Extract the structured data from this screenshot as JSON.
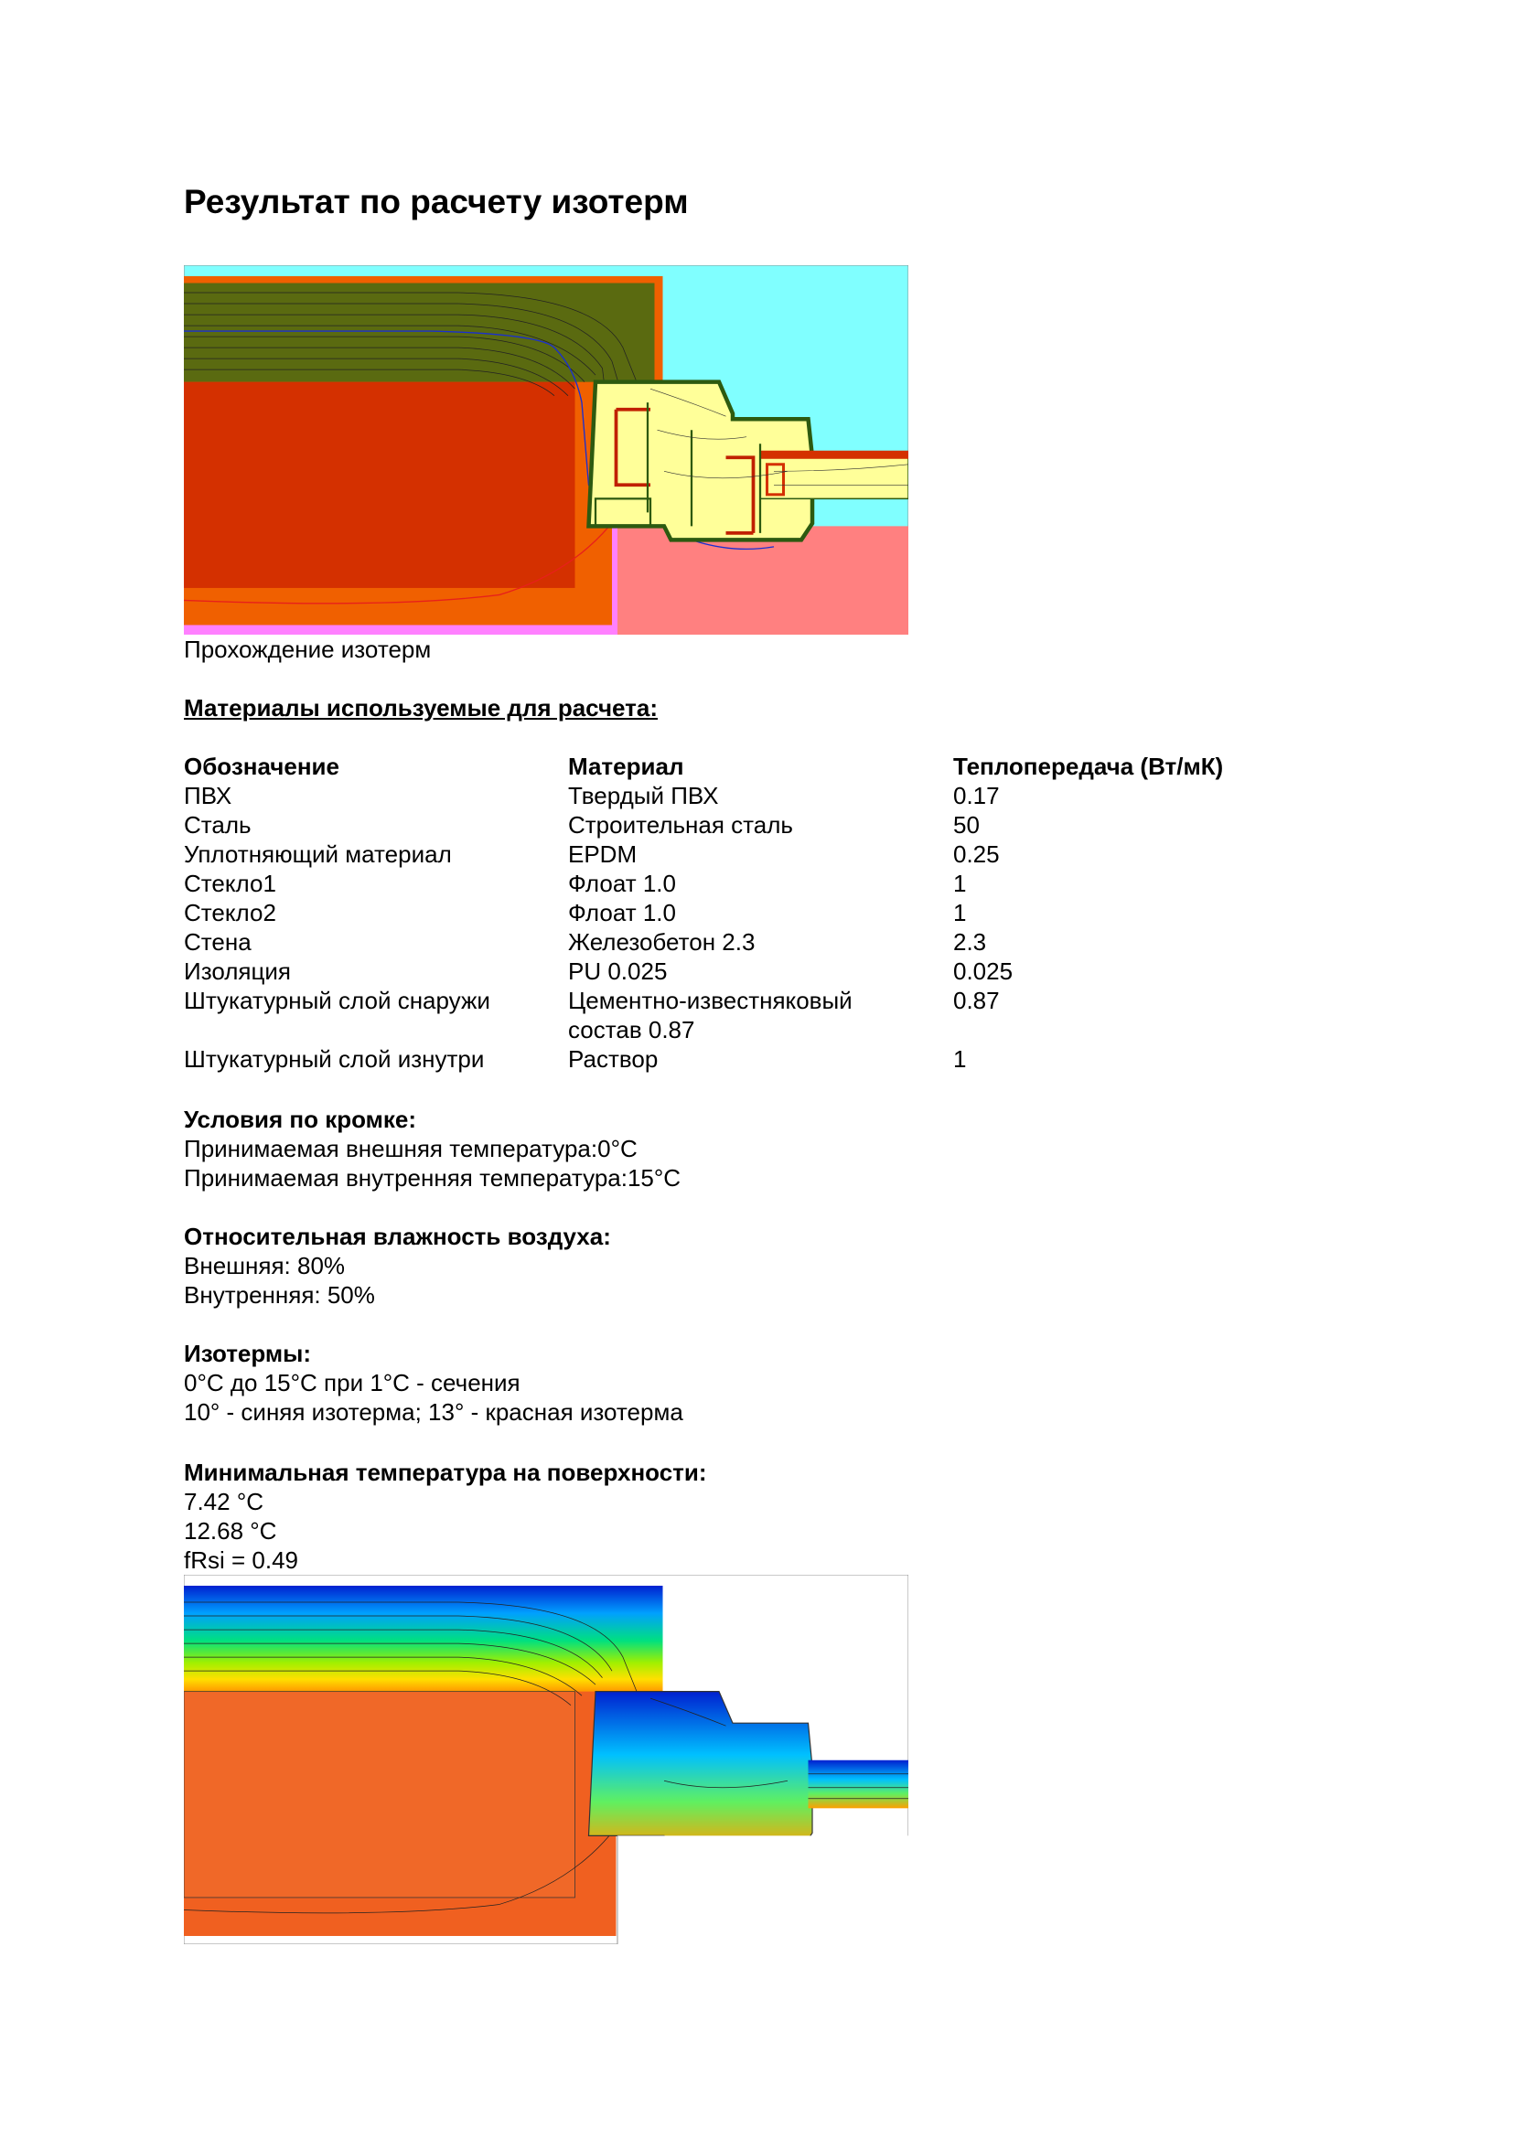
{
  "title": "Результат по расчету изотерм",
  "figure1": {
    "caption": "Прохождение изотерм"
  },
  "materials": {
    "heading": "Материалы используемые для расчета:",
    "columns": [
      "Обозначение",
      "Материал",
      "Теплопередача (Вт/мК)"
    ],
    "rows": [
      [
        "ПВХ",
        "Твердый ПВХ",
        "0.17"
      ],
      [
        "Сталь",
        "Строительная сталь",
        "50"
      ],
      [
        "Уплотняющий материал",
        "EPDM",
        "0.25"
      ],
      [
        "Стекло1",
        "Флоат 1.0",
        "1"
      ],
      [
        "Стекло2",
        "Флоат 1.0",
        "1"
      ],
      [
        "Стена",
        "Железобетон 2.3",
        "2.3"
      ],
      [
        "Изоляция",
        "PU 0.025",
        "0.025"
      ],
      [
        "Штукатурный слой снаружи",
        "Цементно-известняковый состав 0.87",
        "0.87"
      ],
      [
        "Штукатурный слой изнутри",
        "Раствор",
        "1"
      ]
    ]
  },
  "boundary": {
    "heading": "Условия по кромке:",
    "lines": [
      "Принимаемая внешняя температура:0°C",
      "Принимаемая внутренняя температура:15°C"
    ]
  },
  "humidity": {
    "heading": "Относительная влажность воздуха:",
    "lines": [
      "Внешняя: 80%",
      "Внутренняя: 50%"
    ]
  },
  "isotherms": {
    "heading": "Изотермы:",
    "lines": [
      "0°C до 15°C при 1°C - сечения",
      "10° - синяя изотерма; 13° - красная изотерма"
    ]
  },
  "min_temp": {
    "heading": "Минимальная температура на поверхности:",
    "lines": [
      "7.42 °C",
      "12.68 °C",
      "fRsi = 0.49"
    ]
  },
  "colors": {
    "isotherm_10": "#1a2fd0",
    "isotherm_13": "#e8201a",
    "outside_air": "#80ffff",
    "inside_air": "#ff8080"
  }
}
